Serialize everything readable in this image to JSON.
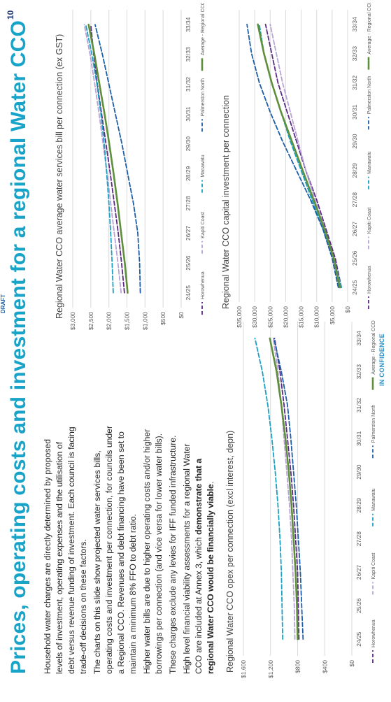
{
  "slide": {
    "title": "Prices, operating costs and investment for a regional Water CCO",
    "draft_label": "DRAFT",
    "page_number": "10",
    "confidentiality": "IN CONFIDENCE",
    "paragraphs": [
      {
        "text": "Household water charges are directly determined by proposed levels of investment, operating expenses and the utilisation of debt versus revenue funding of investment. Each council is facing trade-off decisions on these factors.",
        "bold": ""
      },
      {
        "text": "The charts on this slide show projected water services bills, operating costs and investment per connection, for councils under a Regional CCO. Revenues and debt financing have been set to maintain a minimum 8% FFO to debt ratio.",
        "bold": ""
      },
      {
        "text": "Higher water bills are due to higher operating costs and/or higher borrowings per connection (and vice versa for lower water bills).",
        "bold": ""
      },
      {
        "text": "These charges exclude any levies for IFF funded infrastructure.",
        "bold": ""
      },
      {
        "text": "High level financial viability assessments for a regional Water CCO are included at Annex 3, which ",
        "bold": "demonstrate that a regional Water CCO would be financially viable",
        "after": "."
      }
    ]
  },
  "legend_series": [
    {
      "name": "Horowhenua",
      "color": "#5b2a86",
      "dash": "dash"
    },
    {
      "name": "Kapiti Coast",
      "color": "#b7a3d6",
      "dash": "dash"
    },
    {
      "name": "Manawatu",
      "color": "#1aa1c4",
      "dash": "dash"
    },
    {
      "name": "Palmerston North",
      "color": "#1c5ea8",
      "dash": "dash"
    },
    {
      "name": "Average - Regional CCO",
      "color": "#5e8f3a",
      "dash": "solid"
    }
  ],
  "chart_data": [
    {
      "id": "opex",
      "type": "line",
      "title": "Regional Water CCO opex per connection (excl interest, depn)",
      "categories": [
        "24/25",
        "25/26",
        "26/27",
        "27/28",
        "28/29",
        "29/30",
        "30/31",
        "31/32",
        "32/33",
        "33/34"
      ],
      "yticks": [
        "$0",
        "$400",
        "$800",
        "$1,200",
        "$1,600"
      ],
      "ylim": [
        0,
        1600
      ],
      "series": [
        {
          "name": "Horowhenua",
          "values": [
            780,
            790,
            800,
            830,
            860,
            900,
            950,
            1000,
            1060,
            1140
          ]
        },
        {
          "name": "Kapiti Coast",
          "values": [
            840,
            850,
            870,
            890,
            920,
            960,
            1000,
            1040,
            1090,
            1160
          ]
        },
        {
          "name": "Manawatu",
          "values": [
            1020,
            1030,
            1040,
            1060,
            1090,
            1130,
            1180,
            1240,
            1320,
            1430
          ]
        },
        {
          "name": "Palmerston North",
          "values": [
            720,
            740,
            760,
            790,
            820,
            860,
            900,
            950,
            1040,
            1150
          ]
        },
        {
          "name": "Average - Regional CCO",
          "values": [
            800,
            810,
            830,
            860,
            890,
            930,
            980,
            1040,
            1110,
            1210
          ]
        }
      ]
    },
    {
      "id": "bill",
      "type": "line",
      "title": "Regional Water CCO average water services bill per connection (ex GST)",
      "categories": [
        "24/25",
        "25/26",
        "26/27",
        "27/28",
        "28/29",
        "29/30",
        "30/31",
        "31/32",
        "32/33",
        "33/34"
      ],
      "yticks": [
        "$0",
        "$500",
        "$1,000",
        "$1,500",
        "$2,000",
        "$2,500",
        "$3,000"
      ],
      "ylim": [
        0,
        3000
      ],
      "series": [
        {
          "name": "Horowhenua",
          "values": [
            1570,
            1650,
            1740,
            1850,
            1960,
            2080,
            2200,
            2320,
            2420,
            2500
          ]
        },
        {
          "name": "Kapiti Coast",
          "values": [
            1660,
            1750,
            1850,
            1950,
            2050,
            2160,
            2270,
            2390,
            2520,
            2680
          ]
        },
        {
          "name": "Manawatu",
          "values": [
            1880,
            1910,
            1950,
            2000,
            2060,
            2130,
            2220,
            2330,
            2470,
            2640
          ]
        },
        {
          "name": "Palmerston North",
          "values": [
            1130,
            1150,
            1200,
            1320,
            1480,
            1640,
            1820,
            2000,
            2180,
            2380
          ]
        },
        {
          "name": "Average - Regional CCO",
          "values": [
            1480,
            1560,
            1660,
            1760,
            1870,
            1990,
            2120,
            2260,
            2400,
            2560
          ]
        }
      ]
    },
    {
      "id": "capital",
      "type": "line",
      "title": "Regional Water CCO capital investment per connection",
      "categories": [
        "24/25",
        "25/26",
        "26/27",
        "27/28",
        "28/29",
        "29/30",
        "30/31",
        "31/32",
        "32/33",
        "33/34"
      ],
      "yticks": [
        "$0",
        "$5,000",
        "$10,000",
        "$15,000",
        "$20,000",
        "$25,000",
        "$30,000",
        "$35,000"
      ],
      "ylim": [
        0,
        35000
      ],
      "series": [
        {
          "name": "Horowhenua",
          "values": [
            2000,
            4000,
            7000,
            10000,
            13500,
            16500,
            19500,
            22500,
            24500,
            26500
          ]
        },
        {
          "name": "Kapiti Coast",
          "values": [
            3000,
            5000,
            7500,
            10500,
            13500,
            16000,
            18500,
            21000,
            23000,
            25000
          ]
        },
        {
          "name": "Manawatu",
          "values": [
            2000,
            4500,
            8000,
            11500,
            15000,
            18500,
            21500,
            24500,
            27000,
            28500
          ]
        },
        {
          "name": "Palmerston North",
          "values": [
            3000,
            5000,
            8000,
            12000,
            16500,
            21000,
            25000,
            28500,
            31000,
            32500
          ]
        },
        {
          "name": "Average - Regional CCO",
          "values": [
            2500,
            4500,
            7500,
            11000,
            14500,
            18000,
            21500,
            24500,
            27000,
            29000
          ]
        }
      ]
    }
  ]
}
